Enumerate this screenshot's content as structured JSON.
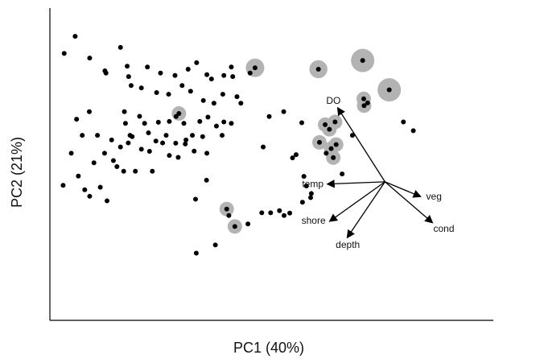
{
  "chart_data": {
    "type": "scatter",
    "title": "",
    "xlabel": "PC1 (40%)",
    "ylabel": "PC2 (21%)",
    "xlim": [
      0,
      100
    ],
    "ylim": [
      0,
      100
    ],
    "grid": false,
    "axes_visible": [
      "left",
      "bottom"
    ],
    "colors": {
      "point": "#000000",
      "highlight": "#b3b3b3",
      "arrow": "#000000",
      "axis": "#000000"
    },
    "points": [
      {
        "x": 11.3,
        "y": 94.4
      },
      {
        "x": 18.9,
        "y": 87.2
      },
      {
        "x": 22.6,
        "y": 85.0
      },
      {
        "x": 26.7,
        "y": 84.1
      },
      {
        "x": 30.4,
        "y": 86.4
      },
      {
        "x": 32.8,
        "y": 88.8
      },
      {
        "x": 35.7,
        "y": 84.4
      },
      {
        "x": 37.0,
        "y": 82.8
      },
      {
        "x": 40.5,
        "y": 84.1
      },
      {
        "x": 42.6,
        "y": 87.2
      },
      {
        "x": 43.0,
        "y": 83.7
      },
      {
        "x": 47.9,
        "y": 85.0
      },
      {
        "x": 14.3,
        "y": 80.4
      },
      {
        "x": 17.2,
        "y": 79.5
      },
      {
        "x": 21.5,
        "y": 77.8
      },
      {
        "x": 24.9,
        "y": 77.2
      },
      {
        "x": 28.7,
        "y": 80.4
      },
      {
        "x": 31.1,
        "y": 78.3
      },
      {
        "x": 34.7,
        "y": 74.9
      },
      {
        "x": 37.7,
        "y": 73.9
      },
      {
        "x": 40.2,
        "y": 77.2
      },
      {
        "x": 44.2,
        "y": 76.3
      },
      {
        "x": 45.3,
        "y": 73.9
      },
      {
        "x": 12.4,
        "y": 70.8
      },
      {
        "x": 16.7,
        "y": 69.1
      },
      {
        "x": 18.1,
        "y": 66.5
      },
      {
        "x": 22.0,
        "y": 66.9
      },
      {
        "x": 25.1,
        "y": 67.2
      },
      {
        "x": 27.0,
        "y": 69.0
      },
      {
        "x": 29.2,
        "y": 66.5
      },
      {
        "x": 33.7,
        "y": 67.2
      },
      {
        "x": 36.0,
        "y": 68.8
      },
      {
        "x": 38.4,
        "y": 65.5
      },
      {
        "x": 40.5,
        "y": 67.0
      },
      {
        "x": 42.6,
        "y": 66.5
      },
      {
        "x": 12.7,
        "y": 66.5
      },
      {
        "x": 14.6,
        "y": 61.6
      },
      {
        "x": 19.2,
        "y": 63.0
      },
      {
        "x": 21.3,
        "y": 60.0
      },
      {
        "x": 24.2,
        "y": 62.1
      },
      {
        "x": 26.9,
        "y": 59.2
      },
      {
        "x": 29.8,
        "y": 60.4
      },
      {
        "x": 31.6,
        "y": 62.1
      },
      {
        "x": 34.5,
        "y": 61.6
      },
      {
        "x": 40.0,
        "y": 62.1
      },
      {
        "x": 11.3,
        "y": 57.8
      },
      {
        "x": 13.5,
        "y": 59.3
      },
      {
        "x": 17.2,
        "y": 57.0
      },
      {
        "x": 19.5,
        "y": 56.2
      },
      {
        "x": 23.2,
        "y": 59.3
      },
      {
        "x": 25.1,
        "y": 54.7
      },
      {
        "x": 27.6,
        "y": 54.0
      },
      {
        "x": 29.6,
        "y": 58.9
      },
      {
        "x": 32.1,
        "y": 56.3
      },
      {
        "x": 35.7,
        "y": 55.5
      },
      {
        "x": 9.3,
        "y": 52.8
      },
      {
        "x": 10.3,
        "y": 50.6
      },
      {
        "x": 12.2,
        "y": 48.9
      },
      {
        "x": 15.5,
        "y": 48.9
      },
      {
        "x": 20.3,
        "y": 48.9
      },
      {
        "x": -4.9,
        "y": 43.7
      },
      {
        "x": 1.2,
        "y": 42.1
      },
      {
        "x": 2.6,
        "y": 39.7
      },
      {
        "x": 5.6,
        "y": 43.0
      },
      {
        "x": 7.5,
        "y": 38.0
      },
      {
        "x": -0.6,
        "y": 47.1
      },
      {
        "x": 3.8,
        "y": 52.0
      },
      {
        "x": 6.8,
        "y": 55.5
      },
      {
        "x": -2.6,
        "y": 55.5
      },
      {
        "x": 0.5,
        "y": 62.1
      },
      {
        "x": 4.8,
        "y": 62.1
      },
      {
        "x": 8.8,
        "y": 60.4
      },
      {
        "x": 14.0,
        "y": 62.1
      },
      {
        "x": -1.1,
        "y": 68.0
      },
      {
        "x": 2.5,
        "y": 70.8
      },
      {
        "x": 13.6,
        "y": 83.7
      },
      {
        "x": -4.6,
        "y": 92.2
      },
      {
        "x": 2.6,
        "y": 90.5
      },
      {
        "x": 6.9,
        "y": 85.8
      },
      {
        "x": -1.5,
        "y": 98.5
      },
      {
        "x": 7.2,
        "y": 85.0
      },
      {
        "x": 13.2,
        "y": 87.5
      },
      {
        "x": 51.6,
        "y": 57.8
      },
      {
        "x": 53.3,
        "y": 69.0
      },
      {
        "x": 57.4,
        "y": 70.8
      },
      {
        "x": 60.9,
        "y": 55.0
      },
      {
        "x": 63.1,
        "y": 47.0
      },
      {
        "x": 63.8,
        "y": 43.5
      },
      {
        "x": 65.2,
        "y": 40.7
      },
      {
        "x": 65.0,
        "y": 39.2
      },
      {
        "x": 62.7,
        "y": 37.5
      },
      {
        "x": 59.1,
        "y": 33.5
      },
      {
        "x": 57.5,
        "y": 32.6
      },
      {
        "x": 56.2,
        "y": 34.4
      },
      {
        "x": 53.7,
        "y": 33.6
      },
      {
        "x": 51.2,
        "y": 33.6
      },
      {
        "x": 47.3,
        "y": 29.5
      },
      {
        "x": 41.9,
        "y": 32.6
      },
      {
        "x": 38.1,
        "y": 21.8
      },
      {
        "x": 32.5,
        "y": 38.6
      },
      {
        "x": 35.6,
        "y": 45.6
      },
      {
        "x": 32.7,
        "y": 18.8
      },
      {
        "x": 73.9,
        "y": 47.9
      },
      {
        "x": 69.4,
        "y": 55.5
      },
      {
        "x": 76.8,
        "y": 62.1
      },
      {
        "x": 81.1,
        "y": 74.0
      },
      {
        "x": 94.0,
        "y": 63.8
      },
      {
        "x": 91.2,
        "y": 67.0
      },
      {
        "x": 59.9,
        "y": 53.8
      },
      {
        "x": 62.5,
        "y": 66.7
      }
    ],
    "highlighted": [
      {
        "x": 49.3,
        "y": 86.9,
        "weight": 0.55
      },
      {
        "x": 67.2,
        "y": 86.4,
        "weight": 0.52
      },
      {
        "x": 79.7,
        "y": 89.6,
        "weight": 0.85
      },
      {
        "x": 87.2,
        "y": 78.8,
        "weight": 0.85
      },
      {
        "x": 80.1,
        "y": 73.0,
        "weight": 0.3
      },
      {
        "x": 80.0,
        "y": 75.5,
        "weight": 0.3
      },
      {
        "x": 67.5,
        "y": 59.5,
        "weight": 0.3
      },
      {
        "x": 70.3,
        "y": 64.3,
        "weight": 0.3
      },
      {
        "x": 72.2,
        "y": 58.7,
        "weight": 0.3
      },
      {
        "x": 70.8,
        "y": 57.2,
        "weight": 0.3
      },
      {
        "x": 71.9,
        "y": 67.0,
        "weight": 0.3
      },
      {
        "x": 69.1,
        "y": 66.0,
        "weight": 0.3
      },
      {
        "x": 71.4,
        "y": 53.9,
        "weight": 0.3
      },
      {
        "x": 41.3,
        "y": 35.0,
        "weight": 0.3
      },
      {
        "x": 43.6,
        "y": 28.6,
        "weight": 0.3
      },
      {
        "x": 27.8,
        "y": 70.1,
        "weight": 0.3
      }
    ],
    "vectors": [
      {
        "name": "DO",
        "dx": -13.2,
        "dy": 26.9
      },
      {
        "name": "temp",
        "dx": -16.0,
        "dy": -0.8
      },
      {
        "name": "veg",
        "dx": 9.8,
        "dy": -5.3
      },
      {
        "name": "cond",
        "dx": 13.2,
        "dy": -14.8
      },
      {
        "name": "shore",
        "dx": -15.4,
        "dy": -14.3
      },
      {
        "name": "depth",
        "dx": -10.5,
        "dy": -20.2
      }
    ],
    "vector_origin": {
      "x": 86.0,
      "y": 45.0
    }
  }
}
